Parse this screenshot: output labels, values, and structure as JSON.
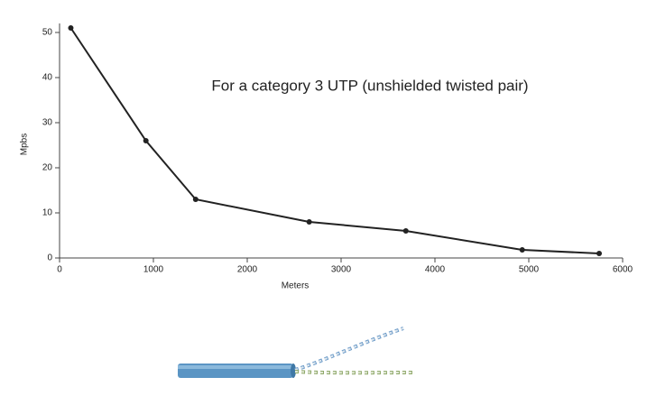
{
  "chart_data": {
    "type": "line",
    "annotation": "For a category 3 UTP (unshielded twisted pair)",
    "x_label": "Meters",
    "y_label": "Mpbs",
    "x": [
      120,
      920,
      1450,
      2660,
      3690,
      4930,
      5750
    ],
    "series": [
      {
        "name": "Mpbs",
        "color": "#222222",
        "values": [
          51,
          26,
          13,
          8,
          6,
          1.8,
          1
        ]
      }
    ],
    "xlim": [
      0,
      6000
    ],
    "xticks": [
      0,
      1000,
      2000,
      3000,
      4000,
      5000,
      6000
    ],
    "ylim": [
      0,
      52
    ],
    "yticks": [
      0,
      10,
      20,
      30,
      40,
      50
    ]
  }
}
